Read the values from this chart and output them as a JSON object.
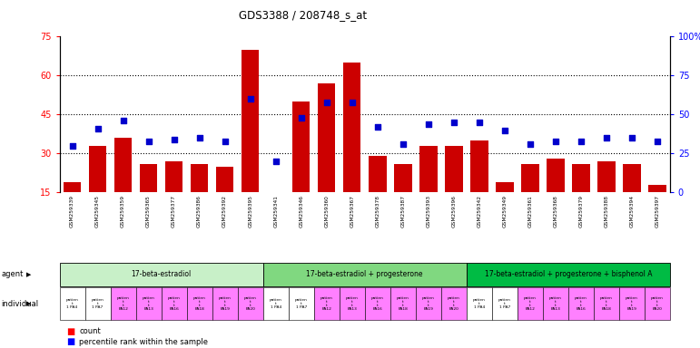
{
  "title": "GDS3388 / 208748_s_at",
  "gsm_labels": [
    "GSM259339",
    "GSM259345",
    "GSM259359",
    "GSM259365",
    "GSM259377",
    "GSM259386",
    "GSM259392",
    "GSM259395",
    "GSM259341",
    "GSM259346",
    "GSM259360",
    "GSM259367",
    "GSM259378",
    "GSM259387",
    "GSM259393",
    "GSM259396",
    "GSM259342",
    "GSM259349",
    "GSM259361",
    "GSM259368",
    "GSM259379",
    "GSM259388",
    "GSM259394",
    "GSM259397"
  ],
  "bar_values": [
    19,
    33,
    36,
    26,
    27,
    26,
    25,
    70,
    13,
    50,
    57,
    65,
    29,
    26,
    33,
    33,
    35,
    19,
    26,
    28,
    26,
    27,
    26,
    18
  ],
  "dot_values": [
    30,
    41,
    46,
    33,
    34,
    35,
    33,
    60,
    20,
    48,
    58,
    58,
    42,
    31,
    44,
    45,
    45,
    40,
    31,
    33,
    33,
    35,
    35,
    33
  ],
  "agent_groups": [
    {
      "label": "17-beta-estradiol",
      "start": 0,
      "end": 7,
      "color": "#c8f0c8"
    },
    {
      "label": "17-beta-estradiol + progesterone",
      "start": 8,
      "end": 15,
      "color": "#80d880"
    },
    {
      "label": "17-beta-estradiol + progesterone + bisphenol A",
      "start": 16,
      "end": 23,
      "color": "#00bb44"
    }
  ],
  "individual_colors_pattern": [
    0,
    0,
    1,
    1,
    1,
    1,
    1,
    1
  ],
  "white_color": "#ffffff",
  "pink_color": "#ff80ff",
  "ylim_left": [
    15,
    75
  ],
  "ylim_right": [
    0,
    100
  ],
  "yticks_left": [
    15,
    30,
    45,
    60,
    75
  ],
  "yticks_right": [
    0,
    25,
    50,
    75,
    100
  ],
  "bar_color": "#cc0000",
  "dot_color": "#0000cc",
  "ind_labels_col0": [
    "patien",
    "t",
    "1 PA4"
  ],
  "ind_labels_col1": [
    "patien",
    "t",
    "1 PA7"
  ],
  "ind_labels_pa": [
    "patien",
    "t",
    "t",
    "PA12"
  ],
  "pa_suffixes": [
    "PA12",
    "PA13",
    "PA16",
    "PA18",
    "PA19",
    "PA20"
  ]
}
